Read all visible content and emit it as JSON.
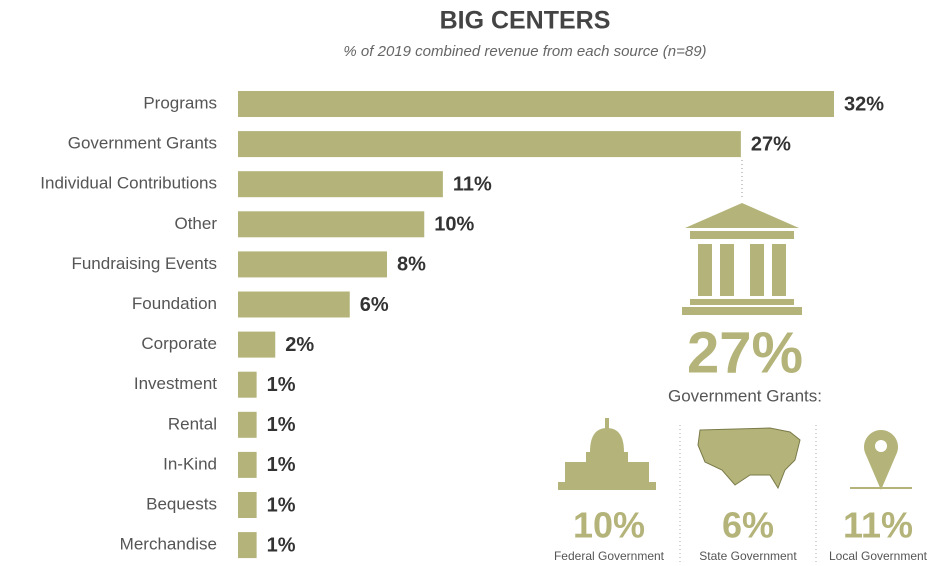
{
  "chart_data": {
    "type": "bar",
    "orientation": "horizontal",
    "title": "BIG CENTERS",
    "subtitle": "% of 2019 combined revenue from each source (n=89)",
    "color": "#b4b47a",
    "categories": [
      "Programs",
      "Government Grants",
      "Individual Contributions",
      "Other",
      "Fundraising Events",
      "Foundation",
      "Corporate",
      "Investment",
      "Rental",
      "In-Kind",
      "Bequests",
      "Merchandise"
    ],
    "values": [
      32,
      27,
      11,
      10,
      8,
      6,
      2,
      1,
      1,
      1,
      1,
      1
    ],
    "value_labels": [
      "32%",
      "27%",
      "11%",
      "10%",
      "8%",
      "6%",
      "2%",
      "1%",
      "1%",
      "1%",
      "1%",
      "1%"
    ],
    "breakdown": {
      "value": 27,
      "value_label": "27%",
      "label": "Government Grants:",
      "items": [
        {
          "name": "Federal Government",
          "value": 10,
          "value_label": "10%"
        },
        {
          "name": "State Government",
          "value": 6,
          "value_label": "6%"
        },
        {
          "name": "Local Government",
          "value": 11,
          "value_label": "11%"
        }
      ]
    }
  }
}
